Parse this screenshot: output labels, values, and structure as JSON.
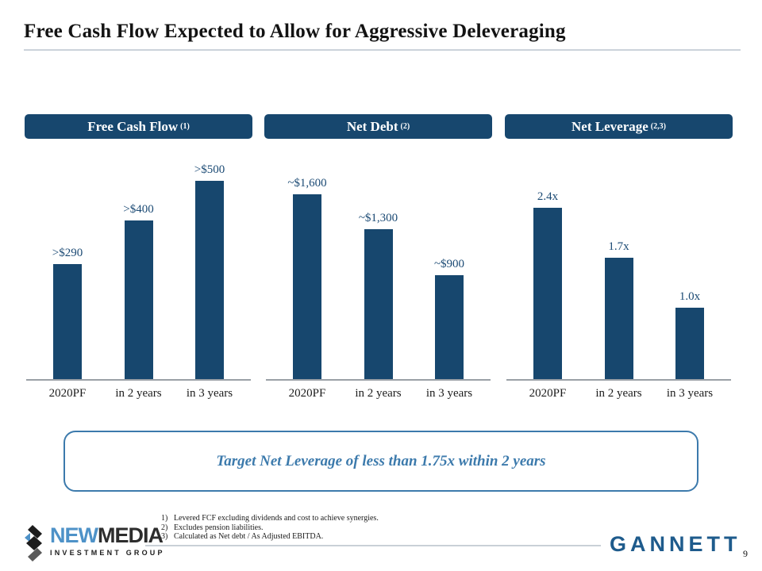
{
  "slide": {
    "title": "Free Cash Flow Expected to Allow for Aggressive Deleveraging",
    "page_number": "9"
  },
  "chart_data": [
    {
      "type": "bar",
      "title": "Free Cash Flow",
      "title_superscript": "(1)",
      "categories": [
        "2020PF",
        "in 2 years",
        "in 3 years"
      ],
      "values": [
        290,
        400,
        500
      ],
      "labels": [
        ">$290",
        ">$400",
        ">$500"
      ],
      "ylim": [
        0,
        500
      ],
      "bar_color": "#17476E",
      "grid": false,
      "legend": "none"
    },
    {
      "type": "bar",
      "title": "Net Debt",
      "title_superscript": "(2)",
      "categories": [
        "2020PF",
        "in 2 years",
        "in 3 years"
      ],
      "values": [
        1600,
        1300,
        900
      ],
      "labels": [
        "~$1,600",
        "~$1,300",
        "~$900"
      ],
      "ylim": [
        0,
        1600
      ],
      "bar_color": "#17476E",
      "grid": false,
      "legend": "none"
    },
    {
      "type": "bar",
      "title": "Net Leverage",
      "title_superscript": "(2,3)",
      "categories": [
        "2020PF",
        "in 2 years",
        "in 3 years"
      ],
      "values": [
        2.4,
        1.7,
        1.0
      ],
      "labels": [
        "2.4x",
        "1.7x",
        "1.0x"
      ],
      "ylim": [
        0,
        2.4
      ],
      "bar_color": "#17476E",
      "grid": false,
      "legend": "none"
    }
  ],
  "callout": {
    "text": "Target Net Leverage of less than 1.75x within 2 years"
  },
  "footnotes": [
    {
      "num": "1)",
      "text": "Levered FCF excluding dividends and cost to achieve synergies."
    },
    {
      "num": "2)",
      "text": "Excludes pension liabilities."
    },
    {
      "num": "3)",
      "text": "Calculated as Net debt / As Adjusted EBITDA."
    }
  ],
  "footer": {
    "newmedia_part1": "NEW",
    "newmedia_part2": "MEDIA",
    "newmedia_subtitle": "INVESTMENT GROUP",
    "gannett": "GANNETT"
  },
  "colors": {
    "bar_navy": "#17476E",
    "value_label_navy": "#1B4A74",
    "callout_blue": "#3C7AAC",
    "gannett_blue": "#1E5B8C",
    "newmedia_blue": "#4E92C8",
    "divider_gray": "#ccd3da",
    "axis_gray": "#9aa0a6"
  }
}
